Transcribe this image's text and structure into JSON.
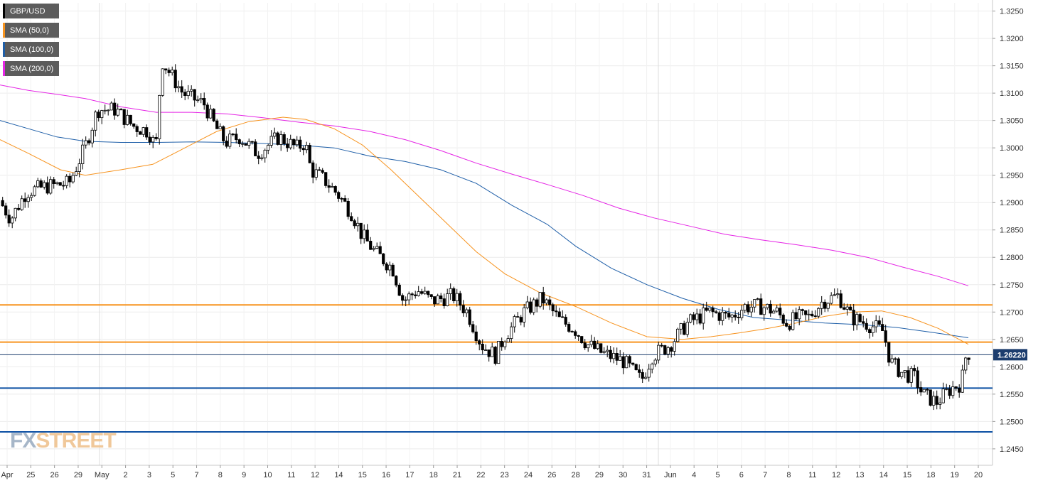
{
  "chart_data": {
    "type": "candlestick",
    "symbol": "GBP/USD",
    "legend": [
      {
        "label": "GBP/USD",
        "color": "#000000"
      },
      {
        "label": "SMA (50,0)",
        "color": "#f7931e"
      },
      {
        "label": "SMA (100,0)",
        "color": "#1f5fa8"
      },
      {
        "label": "SMA (200,0)",
        "color": "#e524e5"
      }
    ],
    "y_axis": {
      "side": "right",
      "ylim": [
        1.242,
        1.3265
      ],
      "ticks": [
        "1.3250",
        "1.3200",
        "1.3150",
        "1.3100",
        "1.3050",
        "1.3000",
        "1.2950",
        "1.2900",
        "1.2850",
        "1.2800",
        "1.2750",
        "1.2700",
        "1.2650",
        "1.2600",
        "1.2550",
        "1.2500",
        "1.2450"
      ]
    },
    "x_axis": {
      "ticks": [
        "Apr",
        "25",
        "26",
        "29",
        "May",
        "2",
        "3",
        "5",
        "7",
        "8",
        "9",
        "10",
        "11",
        "12",
        "14",
        "15",
        "16",
        "17",
        "18",
        "21",
        "22",
        "23",
        "24",
        "26",
        "28",
        "29",
        "30",
        "31",
        "Jun",
        "4",
        "5",
        "6",
        "7",
        "8",
        "11",
        "12",
        "13",
        "14",
        "15",
        "18",
        "19",
        "20"
      ]
    },
    "current_price": {
      "value": 1.2622,
      "label": "1.26220"
    },
    "horizontal_levels": [
      {
        "value": 1.2713,
        "color": "#f7931e"
      },
      {
        "value": 1.2645,
        "color": "#f7931e"
      },
      {
        "value": 1.2561,
        "color": "#0b4fa3"
      },
      {
        "value": 1.2481,
        "color": "#0b4fa3"
      }
    ],
    "anchors": [
      [
        0,
        1.2908
      ],
      [
        18,
        1.287
      ],
      [
        40,
        1.292
      ],
      [
        70,
        1.293
      ],
      [
        100,
        1.2935
      ],
      [
        122,
        1.3
      ],
      [
        140,
        1.307
      ],
      [
        165,
        1.307
      ],
      [
        190,
        1.304
      ],
      [
        212,
        1.303
      ],
      [
        222,
        1.3
      ],
      [
        230,
        1.316
      ],
      [
        245,
        1.313
      ],
      [
        260,
        1.31
      ],
      [
        290,
        1.308
      ],
      [
        305,
        1.304
      ],
      [
        320,
        1.301
      ],
      [
        340,
        1.302
      ],
      [
        365,
        1.299
      ],
      [
        395,
        1.302
      ],
      [
        420,
        1.3
      ],
      [
        432,
        1.301
      ],
      [
        440,
        1.296
      ],
      [
        460,
        1.294
      ],
      [
        478,
        1.2915
      ],
      [
        498,
        1.288
      ],
      [
        512,
        1.284
      ],
      [
        530,
        1.281
      ],
      [
        555,
        1.278
      ],
      [
        570,
        1.272
      ],
      [
        590,
        1.274
      ],
      [
        610,
        1.272
      ],
      [
        640,
        1.273
      ],
      [
        660,
        1.27
      ],
      [
        680,
        1.264
      ],
      [
        700,
        1.262
      ],
      [
        712,
        1.2655
      ],
      [
        740,
        1.27
      ],
      [
        765,
        1.2725
      ],
      [
        790,
        1.2685
      ],
      [
        810,
        1.267
      ],
      [
        830,
        1.264
      ],
      [
        850,
        1.2625
      ],
      [
        880,
        1.261
      ],
      [
        905,
        1.2575
      ],
      [
        920,
        1.262
      ],
      [
        945,
        1.264
      ],
      [
        970,
        1.268
      ],
      [
        1000,
        1.27
      ],
      [
        1030,
        1.269
      ],
      [
        1050,
        1.271
      ],
      [
        1075,
        1.271
      ],
      [
        1095,
        1.27
      ],
      [
        1110,
        1.268
      ],
      [
        1125,
        1.269
      ],
      [
        1140,
        1.269
      ],
      [
        1160,
        1.272
      ],
      [
        1182,
        1.273
      ],
      [
        1200,
        1.269
      ],
      [
        1220,
        1.268
      ],
      [
        1245,
        1.2665
      ],
      [
        1255,
        1.261
      ],
      [
        1270,
        1.259
      ],
      [
        1290,
        1.258
      ],
      [
        1300,
        1.255
      ],
      [
        1320,
        1.2535
      ],
      [
        1340,
        1.256
      ],
      [
        1355,
        1.257
      ],
      [
        1362,
        1.2625
      ]
    ],
    "sma50": [
      [
        0,
        1.3015
      ],
      [
        40,
        1.299
      ],
      [
        85,
        1.296
      ],
      [
        120,
        1.295
      ],
      [
        170,
        1.296
      ],
      [
        215,
        1.297
      ],
      [
        260,
        1.3
      ],
      [
        305,
        1.303
      ],
      [
        350,
        1.3048
      ],
      [
        398,
        1.3056
      ],
      [
        430,
        1.3052
      ],
      [
        470,
        1.3035
      ],
      [
        510,
        1.3005
      ],
      [
        550,
        1.296
      ],
      [
        590,
        1.291
      ],
      [
        630,
        1.286
      ],
      [
        670,
        1.281
      ],
      [
        710,
        1.277
      ],
      [
        760,
        1.2735
      ],
      [
        810,
        1.271
      ],
      [
        860,
        1.268
      ],
      [
        910,
        1.2655
      ],
      [
        960,
        1.265
      ],
      [
        1000,
        1.2655
      ],
      [
        1040,
        1.2662
      ],
      [
        1080,
        1.267
      ],
      [
        1120,
        1.268
      ],
      [
        1160,
        1.2692
      ],
      [
        1200,
        1.27
      ],
      [
        1240,
        1.2702
      ],
      [
        1280,
        1.269
      ],
      [
        1320,
        1.267
      ],
      [
        1362,
        1.2641
      ]
    ],
    "sma100": [
      [
        0,
        1.305
      ],
      [
        40,
        1.3035
      ],
      [
        80,
        1.302
      ],
      [
        120,
        1.3012
      ],
      [
        170,
        1.301
      ],
      [
        220,
        1.301
      ],
      [
        270,
        1.3011
      ],
      [
        320,
        1.301
      ],
      [
        370,
        1.3008
      ],
      [
        420,
        1.3005
      ],
      [
        470,
        1.3
      ],
      [
        520,
        1.2985
      ],
      [
        570,
        1.2975
      ],
      [
        620,
        1.296
      ],
      [
        670,
        1.2935
      ],
      [
        720,
        1.2895
      ],
      [
        770,
        1.286
      ],
      [
        810,
        1.282
      ],
      [
        860,
        1.278
      ],
      [
        910,
        1.275
      ],
      [
        960,
        1.2725
      ],
      [
        1010,
        1.2705
      ],
      [
        1060,
        1.269
      ],
      [
        1110,
        1.2685
      ],
      [
        1160,
        1.268
      ],
      [
        1210,
        1.2677
      ],
      [
        1260,
        1.2672
      ],
      [
        1310,
        1.2663
      ],
      [
        1362,
        1.2653
      ]
    ],
    "sma200": [
      [
        0,
        1.3115
      ],
      [
        40,
        1.3105
      ],
      [
        80,
        1.3098
      ],
      [
        120,
        1.309
      ],
      [
        170,
        1.3075
      ],
      [
        220,
        1.3065
      ],
      [
        270,
        1.3065
      ],
      [
        320,
        1.3062
      ],
      [
        370,
        1.3055
      ],
      [
        420,
        1.3047
      ],
      [
        470,
        1.304
      ],
      [
        520,
        1.303
      ],
      [
        570,
        1.3015
      ],
      [
        620,
        1.2995
      ],
      [
        670,
        1.2972
      ],
      [
        720,
        1.2952
      ],
      [
        770,
        1.2933
      ],
      [
        820,
        1.2913
      ],
      [
        870,
        1.289
      ],
      [
        920,
        1.2872
      ],
      [
        970,
        1.2857
      ],
      [
        1020,
        1.2842
      ],
      [
        1070,
        1.2832
      ],
      [
        1120,
        1.2823
      ],
      [
        1170,
        1.2813
      ],
      [
        1220,
        1.28
      ],
      [
        1270,
        1.2782
      ],
      [
        1320,
        1.2765
      ],
      [
        1362,
        1.2748
      ]
    ]
  },
  "watermark": {
    "part1": "FX",
    "part2": "STREET"
  }
}
